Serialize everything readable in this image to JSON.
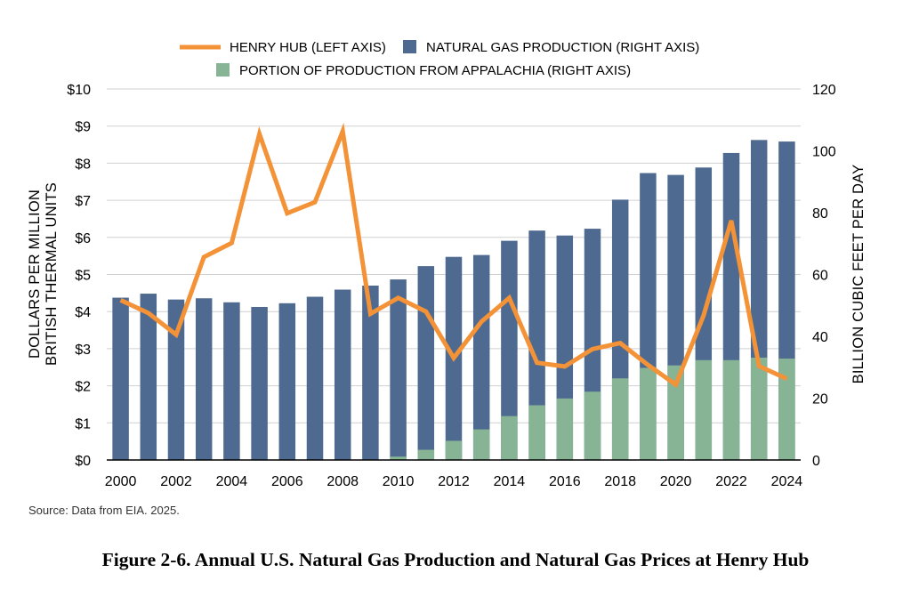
{
  "chart_data": {
    "type": "bar+line",
    "caption": "Figure 2-6. Annual U.S. Natural Gas Production and Natural Gas Prices at Henry Hub",
    "source": "Source: Data from EIA. 2025.",
    "legend": {
      "placement": "top-center",
      "items": [
        {
          "label": "HENRY HUB (LEFT AXIS)",
          "color": "#f39237",
          "kind": "line"
        },
        {
          "label": "NATURAL GAS PRODUCTION (RIGHT AXIS)",
          "color": "#4f6a90",
          "kind": "bar"
        },
        {
          "label": "PORTION OF PRODUCTION FROM APPALACHIA (RIGHT AXIS)",
          "color": "#86b495",
          "kind": "bar"
        }
      ]
    },
    "left_axis": {
      "title_lines": [
        "DOLLARS PER MILLION",
        "BRITISH THERMAL UNITS"
      ],
      "ylim": [
        0,
        10
      ],
      "ticks": [
        0,
        1,
        2,
        3,
        4,
        5,
        6,
        7,
        8,
        9,
        10
      ],
      "tick_labels": [
        "$0",
        "$1",
        "$2",
        "$3",
        "$4",
        "$5",
        "$6",
        "$7",
        "$8",
        "$9",
        "$10"
      ]
    },
    "right_axis": {
      "title": "BILLION CUBIC FEET PER DAY",
      "ylim": [
        0,
        120
      ],
      "ticks": [
        0,
        20,
        40,
        60,
        80,
        100,
        120
      ],
      "tick_labels": [
        "0",
        "20",
        "40",
        "60",
        "80",
        "100",
        "120"
      ]
    },
    "x_tick_labels": [
      "2000",
      "2002",
      "2004",
      "2006",
      "2008",
      "2010",
      "2012",
      "2014",
      "2016",
      "2018",
      "2020",
      "2022",
      "2024"
    ],
    "grid": true,
    "years": [
      2000,
      2001,
      2002,
      2003,
      2004,
      2005,
      2006,
      2007,
      2008,
      2009,
      2010,
      2011,
      2012,
      2013,
      2014,
      2015,
      2016,
      2017,
      2018,
      2019,
      2020,
      2021,
      2022,
      2023,
      2024
    ],
    "series": [
      {
        "name": "NATURAL GAS PRODUCTION (RIGHT AXIS)",
        "axis": "right",
        "values": [
          52.5,
          53.8,
          51.9,
          52.3,
          51.0,
          49.5,
          50.7,
          52.8,
          55.1,
          56.4,
          58.4,
          62.7,
          65.7,
          66.3,
          70.9,
          74.2,
          72.6,
          74.8,
          84.2,
          92.8,
          92.2,
          94.6,
          99.3,
          103.5,
          103.0
        ]
      },
      {
        "name": "PORTION OF PRODUCTION FROM APPALACHIA (RIGHT AXIS)",
        "axis": "right",
        "values": [
          0,
          0,
          0,
          0,
          0,
          0,
          0,
          0,
          0,
          0,
          1.1,
          3.3,
          6.2,
          9.9,
          14.2,
          17.7,
          19.9,
          22.1,
          26.4,
          29.8,
          30.6,
          32.3,
          32.3,
          33.1,
          32.8
        ]
      },
      {
        "name": "HENRY HUB (LEFT AXIS)",
        "axis": "left",
        "values": [
          4.31,
          3.96,
          3.38,
          5.47,
          5.85,
          8.79,
          6.65,
          6.95,
          8.86,
          3.94,
          4.37,
          4.0,
          2.75,
          3.73,
          4.37,
          2.62,
          2.52,
          2.99,
          3.15,
          2.56,
          2.03,
          3.89,
          6.45,
          2.53,
          2.19
        ]
      }
    ]
  }
}
